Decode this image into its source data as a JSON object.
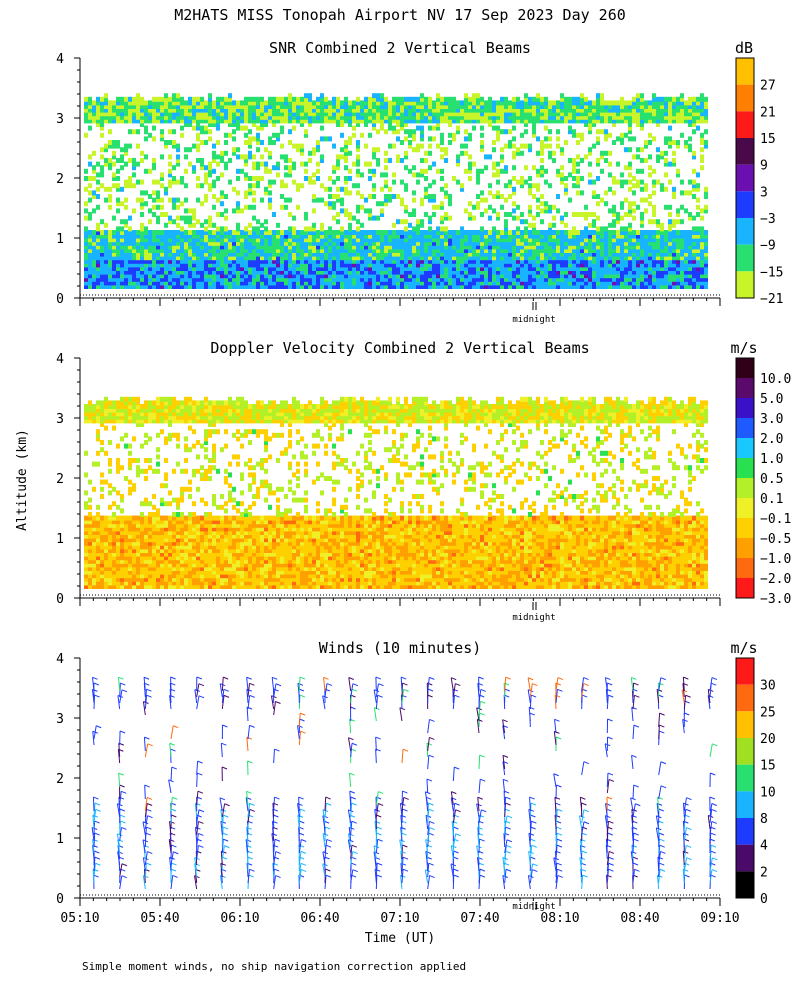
{
  "page": {
    "title": "M2HATS MISS Tonopah Airport NV  17 Sep 2023 Day 260",
    "footnote": "Simple moment winds, no ship navigation correction applied",
    "y_axis_label": "Altitude (km)",
    "x_axis_label": "Time (UT)"
  },
  "chart_data": [
    {
      "type": "heatmap",
      "title": "SNR Combined 2 Vertical Beams",
      "colorbar_unit": "dB",
      "colorbar_labels": [
        "27",
        "21",
        "15",
        "9",
        "3",
        "−3",
        "−9",
        "−15",
        "−21"
      ],
      "colorbar_colors": [
        "#ffc000",
        "#ff8000",
        "#ff1a1a",
        "#4a0a4a",
        "#6a10b0",
        "#1e3cff",
        "#19b4ff",
        "#28e070",
        "#c8f52a"
      ],
      "y_ticks": [
        "0",
        "1",
        "2",
        "3",
        "4"
      ],
      "ylim": [
        0,
        4
      ],
      "marker_label": "midnight",
      "description_layers": {
        "data_top_km": 3.3,
        "data_bottom_km": 0.15
      }
    },
    {
      "type": "heatmap",
      "title": "Doppler Velocity Combined 2 Vertical Beams",
      "colorbar_unit": "m/s",
      "colorbar_labels": [
        "10.0",
        "5.0",
        "3.0",
        "2.0",
        "1.0",
        "0.5",
        "0.1",
        "−0.1",
        "−0.5",
        "−1.0",
        "−2.0",
        "−3.0"
      ],
      "colorbar_colors": [
        "#300018",
        "#5a0a6a",
        "#3a10c8",
        "#1e5aff",
        "#19c8ff",
        "#28e050",
        "#b4f028",
        "#f0f028",
        "#ffd000",
        "#ffa000",
        "#ff6a10",
        "#ff1a1a"
      ],
      "y_ticks": [
        "0",
        "1",
        "2",
        "3",
        "4"
      ],
      "ylim": [
        0,
        4
      ],
      "marker_label": "midnight"
    },
    {
      "type": "scatter",
      "title": "Winds (10 minutes)",
      "colorbar_unit": "m/s",
      "colorbar_labels": [
        "30",
        "25",
        "20",
        "15",
        "10",
        "8",
        "4",
        "2",
        "0"
      ],
      "colorbar_colors": [
        "#ff1a1a",
        "#ff6a10",
        "#ffc000",
        "#a0e020",
        "#28e070",
        "#19b4ff",
        "#1e3cff",
        "#4a0a6a",
        "#000000"
      ],
      "y_ticks": [
        "0",
        "1",
        "2",
        "3",
        "4"
      ],
      "ylim": [
        0,
        4
      ],
      "x_ticks": [
        "05:10",
        "05:40",
        "06:10",
        "06:40",
        "07:10",
        "07:40",
        "08:10",
        "08:40",
        "09:10"
      ],
      "marker_label": "midnight"
    }
  ]
}
